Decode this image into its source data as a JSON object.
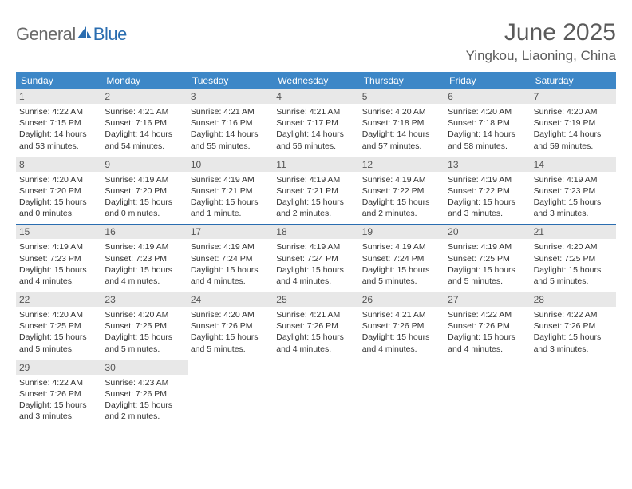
{
  "logo": {
    "general": "General",
    "blue": "Blue"
  },
  "title": "June 2025",
  "location": "Yingkou, Liaoning, China",
  "header_bg": "#3d87c7",
  "row_border": "#2a6db0",
  "daynum_bg": "#e8e8e8",
  "days": [
    "Sunday",
    "Monday",
    "Tuesday",
    "Wednesday",
    "Thursday",
    "Friday",
    "Saturday"
  ],
  "weeks": [
    [
      {
        "n": "1",
        "sr": "4:22 AM",
        "ss": "7:15 PM",
        "d1": "14 hours",
        "d2": "and 53 minutes."
      },
      {
        "n": "2",
        "sr": "4:21 AM",
        "ss": "7:16 PM",
        "d1": "14 hours",
        "d2": "and 54 minutes."
      },
      {
        "n": "3",
        "sr": "4:21 AM",
        "ss": "7:16 PM",
        "d1": "14 hours",
        "d2": "and 55 minutes."
      },
      {
        "n": "4",
        "sr": "4:21 AM",
        "ss": "7:17 PM",
        "d1": "14 hours",
        "d2": "and 56 minutes."
      },
      {
        "n": "5",
        "sr": "4:20 AM",
        "ss": "7:18 PM",
        "d1": "14 hours",
        "d2": "and 57 minutes."
      },
      {
        "n": "6",
        "sr": "4:20 AM",
        "ss": "7:18 PM",
        "d1": "14 hours",
        "d2": "and 58 minutes."
      },
      {
        "n": "7",
        "sr": "4:20 AM",
        "ss": "7:19 PM",
        "d1": "14 hours",
        "d2": "and 59 minutes."
      }
    ],
    [
      {
        "n": "8",
        "sr": "4:20 AM",
        "ss": "7:20 PM",
        "d1": "15 hours",
        "d2": "and 0 minutes."
      },
      {
        "n": "9",
        "sr": "4:19 AM",
        "ss": "7:20 PM",
        "d1": "15 hours",
        "d2": "and 0 minutes."
      },
      {
        "n": "10",
        "sr": "4:19 AM",
        "ss": "7:21 PM",
        "d1": "15 hours",
        "d2": "and 1 minute."
      },
      {
        "n": "11",
        "sr": "4:19 AM",
        "ss": "7:21 PM",
        "d1": "15 hours",
        "d2": "and 2 minutes."
      },
      {
        "n": "12",
        "sr": "4:19 AM",
        "ss": "7:22 PM",
        "d1": "15 hours",
        "d2": "and 2 minutes."
      },
      {
        "n": "13",
        "sr": "4:19 AM",
        "ss": "7:22 PM",
        "d1": "15 hours",
        "d2": "and 3 minutes."
      },
      {
        "n": "14",
        "sr": "4:19 AM",
        "ss": "7:23 PM",
        "d1": "15 hours",
        "d2": "and 3 minutes."
      }
    ],
    [
      {
        "n": "15",
        "sr": "4:19 AM",
        "ss": "7:23 PM",
        "d1": "15 hours",
        "d2": "and 4 minutes."
      },
      {
        "n": "16",
        "sr": "4:19 AM",
        "ss": "7:23 PM",
        "d1": "15 hours",
        "d2": "and 4 minutes."
      },
      {
        "n": "17",
        "sr": "4:19 AM",
        "ss": "7:24 PM",
        "d1": "15 hours",
        "d2": "and 4 minutes."
      },
      {
        "n": "18",
        "sr": "4:19 AM",
        "ss": "7:24 PM",
        "d1": "15 hours",
        "d2": "and 4 minutes."
      },
      {
        "n": "19",
        "sr": "4:19 AM",
        "ss": "7:24 PM",
        "d1": "15 hours",
        "d2": "and 5 minutes."
      },
      {
        "n": "20",
        "sr": "4:19 AM",
        "ss": "7:25 PM",
        "d1": "15 hours",
        "d2": "and 5 minutes."
      },
      {
        "n": "21",
        "sr": "4:20 AM",
        "ss": "7:25 PM",
        "d1": "15 hours",
        "d2": "and 5 minutes."
      }
    ],
    [
      {
        "n": "22",
        "sr": "4:20 AM",
        "ss": "7:25 PM",
        "d1": "15 hours",
        "d2": "and 5 minutes."
      },
      {
        "n": "23",
        "sr": "4:20 AM",
        "ss": "7:25 PM",
        "d1": "15 hours",
        "d2": "and 5 minutes."
      },
      {
        "n": "24",
        "sr": "4:20 AM",
        "ss": "7:26 PM",
        "d1": "15 hours",
        "d2": "and 5 minutes."
      },
      {
        "n": "25",
        "sr": "4:21 AM",
        "ss": "7:26 PM",
        "d1": "15 hours",
        "d2": "and 4 minutes."
      },
      {
        "n": "26",
        "sr": "4:21 AM",
        "ss": "7:26 PM",
        "d1": "15 hours",
        "d2": "and 4 minutes."
      },
      {
        "n": "27",
        "sr": "4:22 AM",
        "ss": "7:26 PM",
        "d1": "15 hours",
        "d2": "and 4 minutes."
      },
      {
        "n": "28",
        "sr": "4:22 AM",
        "ss": "7:26 PM",
        "d1": "15 hours",
        "d2": "and 3 minutes."
      }
    ],
    [
      {
        "n": "29",
        "sr": "4:22 AM",
        "ss": "7:26 PM",
        "d1": "15 hours",
        "d2": "and 3 minutes."
      },
      {
        "n": "30",
        "sr": "4:23 AM",
        "ss": "7:26 PM",
        "d1": "15 hours",
        "d2": "and 2 minutes."
      },
      null,
      null,
      null,
      null,
      null
    ]
  ],
  "labels": {
    "sunrise_prefix": "Sunrise: ",
    "sunset_prefix": "Sunset: ",
    "daylight_prefix": "Daylight: "
  }
}
